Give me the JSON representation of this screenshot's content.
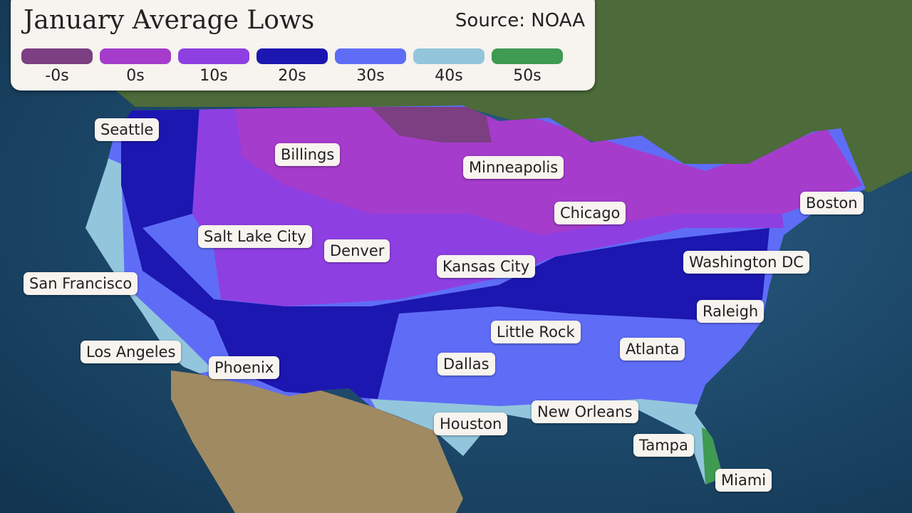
{
  "title": "January Average Lows",
  "source": "Source: NOAA",
  "legend": [
    {
      "label": "-0s",
      "color": "#7b3f82"
    },
    {
      "label": "0s",
      "color": "#a53ccc"
    },
    {
      "label": "10s",
      "color": "#8e3fe2"
    },
    {
      "label": "20s",
      "color": "#1c17b0"
    },
    {
      "label": "30s",
      "color": "#5f6df6"
    },
    {
      "label": "40s",
      "color": "#93c6dc"
    },
    {
      "label": "50s",
      "color": "#3f9a52"
    }
  ],
  "cities": [
    "Seattle",
    "Billings",
    "Minneapolis",
    "Boston",
    "Chicago",
    "Salt Lake City",
    "Denver",
    "Kansas City",
    "Washington DC",
    "San Francisco",
    "Raleigh",
    "Little Rock",
    "Atlanta",
    "Los Angeles",
    "Phoenix",
    "Dallas",
    "New Orleans",
    "Houston",
    "Tampa",
    "Miami"
  ]
}
